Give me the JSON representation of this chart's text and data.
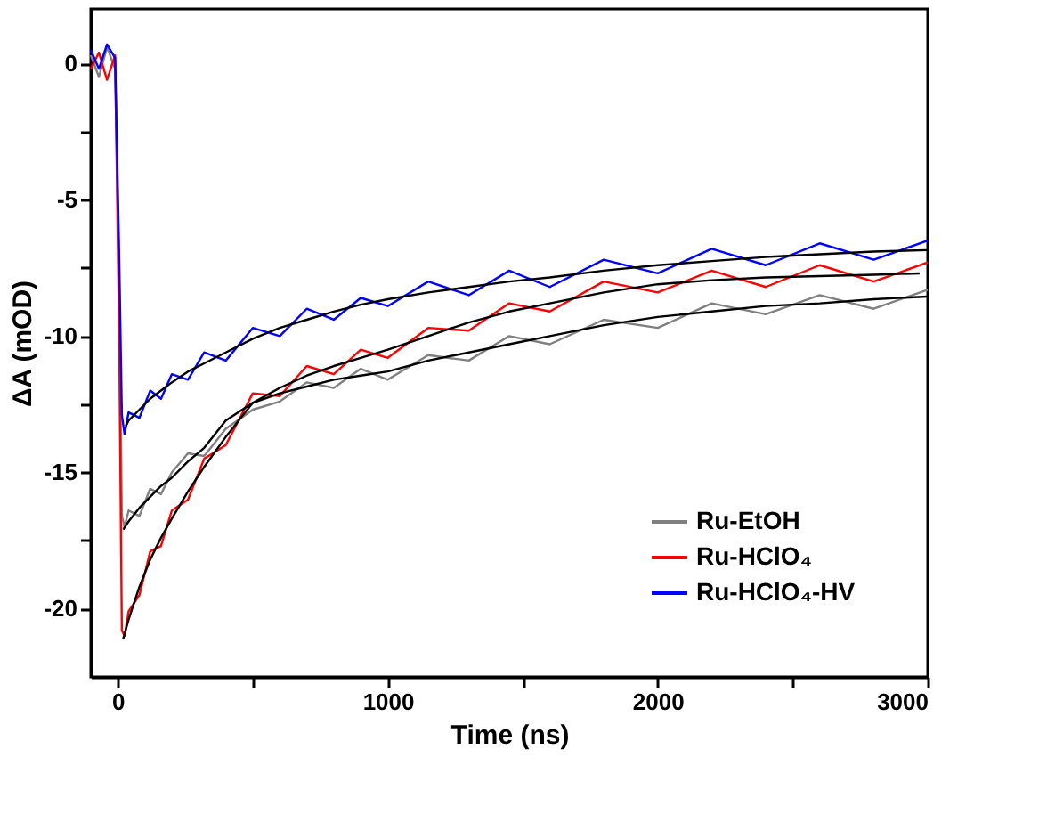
{
  "chart_data": {
    "type": "line",
    "xlabel": "Time (ns)",
    "ylabel": "ΔA (mOD)",
    "xlim": [
      -100,
      3000
    ],
    "ylim": [
      -22.5,
      2
    ],
    "xticks": [
      0,
      {
        "value": 500,
        "label": null
      },
      1000,
      {
        "value": 1500,
        "label": null
      },
      2000,
      {
        "value": 2500,
        "label": null
      },
      3000
    ],
    "yticks": [
      0,
      {
        "value": -2.5,
        "label": null
      },
      -5,
      {
        "value": -7.5,
        "label": null
      },
      -10,
      {
        "value": -12.5,
        "label": null
      },
      -15,
      {
        "value": -17.5,
        "label": null
      },
      -20
    ],
    "grid": false,
    "legend": "bottom right",
    "line_style": "solid",
    "marker": "none",
    "series": [
      {
        "name": "Ru-EtOH",
        "color": "#808080",
        "x": [
          -100,
          -70,
          -40,
          -10,
          5,
          15,
          25,
          40,
          80,
          120,
          160,
          200,
          260,
          320,
          400,
          500,
          600,
          700,
          800,
          900,
          1000,
          1150,
          1300,
          1450,
          1600,
          1800,
          2000,
          2200,
          2400,
          2600,
          2800,
          3000
        ],
        "values": [
          0.3,
          -0.5,
          0.6,
          -0.2,
          -8,
          -16.6,
          -17.0,
          -16.4,
          -16.6,
          -15.6,
          -15.8,
          -15.0,
          -14.3,
          -14.4,
          -13.4,
          -12.7,
          -12.4,
          -11.7,
          -11.9,
          -11.2,
          -11.6,
          -10.7,
          -10.9,
          -10.0,
          -10.3,
          -9.4,
          -9.7,
          -8.8,
          -9.2,
          -8.5,
          -9.0,
          -8.3
        ]
      },
      {
        "name": "Ru-HClO₄",
        "color": "#ff0000",
        "x": [
          -100,
          -70,
          -40,
          -10,
          5,
          15,
          25,
          40,
          80,
          120,
          160,
          200,
          260,
          320,
          400,
          500,
          600,
          700,
          800,
          900,
          1000,
          1150,
          1300,
          1450,
          1600,
          1800,
          2000,
          2200,
          2400,
          2600,
          2800,
          3000
        ],
        "values": [
          -0.2,
          0.4,
          -0.6,
          0.3,
          -10,
          -20.8,
          -21.0,
          -20.1,
          -19.5,
          -17.9,
          -17.7,
          -16.4,
          -16.0,
          -14.5,
          -14.0,
          -12.1,
          -12.2,
          -11.1,
          -11.4,
          -10.5,
          -10.8,
          -9.7,
          -9.8,
          -8.8,
          -9.1,
          -8.0,
          -8.4,
          -7.6,
          -8.2,
          -7.4,
          -8.0,
          -7.3
        ]
      },
      {
        "name": "Ru-HClO₄-HV",
        "color": "#0000ff",
        "x": [
          -100,
          -70,
          -40,
          -10,
          5,
          15,
          25,
          40,
          80,
          120,
          160,
          200,
          260,
          320,
          400,
          500,
          600,
          700,
          800,
          900,
          1000,
          1150,
          1300,
          1450,
          1600,
          1800,
          2000,
          2200,
          2400,
          2600,
          2800,
          3000
        ],
        "values": [
          0.5,
          -0.2,
          0.7,
          0.2,
          -7,
          -12.9,
          -13.6,
          -12.8,
          -13.0,
          -12.0,
          -12.3,
          -11.4,
          -11.6,
          -10.6,
          -10.9,
          -9.7,
          -10.0,
          -9.0,
          -9.4,
          -8.6,
          -8.9,
          -8.0,
          -8.5,
          -7.6,
          -8.2,
          -7.2,
          -7.7,
          -6.8,
          -7.4,
          -6.6,
          -7.2,
          -6.5
        ]
      },
      {
        "type": "line",
        "color": "#000000",
        "x": [
          20,
          40,
          80,
          120,
          160,
          200,
          260,
          320,
          400,
          500,
          600,
          700,
          800,
          900,
          1000,
          1150,
          1300,
          1450,
          1600,
          1800,
          2000,
          2200,
          2400,
          2600,
          2800,
          3000
        ],
        "values": [
          -17.1,
          -16.8,
          -16.3,
          -15.9,
          -15.5,
          -15.2,
          -14.6,
          -14.1,
          -13.1,
          -12.45,
          -12.1,
          -11.85,
          -11.6,
          -11.45,
          -11.3,
          -10.9,
          -10.6,
          -10.3,
          -10.0,
          -9.6,
          -9.3,
          -9.1,
          -8.9,
          -8.8,
          -8.65,
          -8.55
        ]
      },
      {
        "type": "line",
        "color": "#000000",
        "x": [
          20,
          40,
          80,
          120,
          160,
          200,
          260,
          320,
          400,
          500,
          600,
          700,
          800,
          900,
          1000,
          1150,
          1300,
          1450,
          1600,
          1800,
          2000,
          2200,
          2400,
          2600,
          2800,
          2970
        ],
        "values": [
          -21.1,
          -20.4,
          -19.2,
          -18.2,
          -17.4,
          -16.7,
          -15.7,
          -14.8,
          -13.7,
          -12.45,
          -11.9,
          -11.45,
          -11.1,
          -10.8,
          -10.5,
          -10.0,
          -9.5,
          -9.1,
          -8.8,
          -8.4,
          -8.1,
          -7.95,
          -7.85,
          -7.8,
          -7.75,
          -7.7
        ]
      },
      {
        "type": "line",
        "color": "#000000",
        "x": [
          30,
          40,
          80,
          120,
          160,
          200,
          260,
          320,
          400,
          500,
          600,
          700,
          800,
          900,
          1000,
          1150,
          1300,
          1450,
          1600,
          1800,
          2000,
          2200,
          2400,
          2600,
          2800,
          3000
        ],
        "values": [
          -13.3,
          -13.1,
          -12.7,
          -12.3,
          -12.0,
          -11.7,
          -11.3,
          -11.0,
          -10.6,
          -10.1,
          -9.7,
          -9.4,
          -9.1,
          -8.85,
          -8.65,
          -8.4,
          -8.2,
          -8.0,
          -7.85,
          -7.6,
          -7.4,
          -7.25,
          -7.1,
          -7.0,
          -6.9,
          -6.85
        ]
      }
    ]
  }
}
